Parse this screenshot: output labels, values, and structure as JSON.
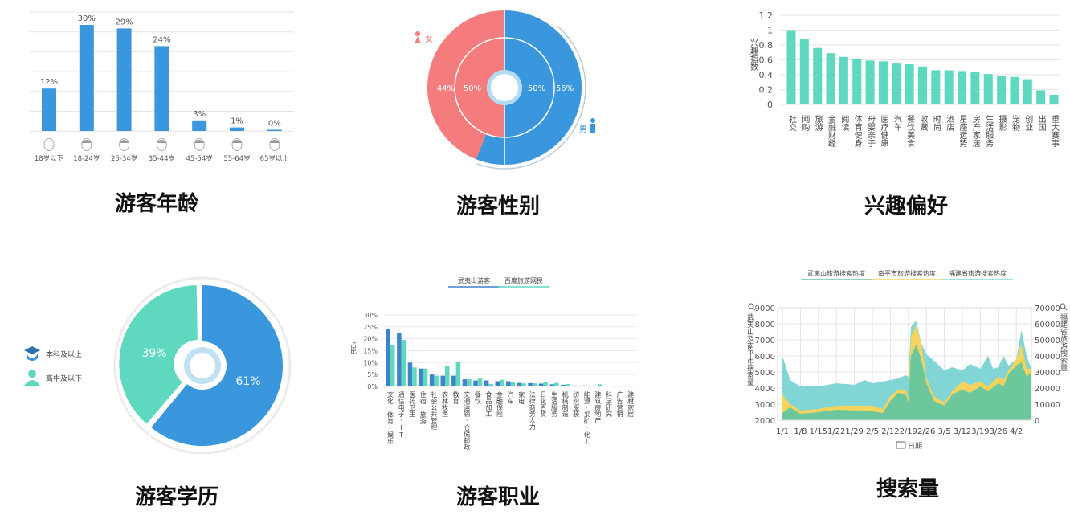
{
  "colors": {
    "age_bar": "#3a96dd",
    "female": "#f47c7c",
    "male": "#3a96dd",
    "interest_bar": "#5fd8c0",
    "edu_bachelor": "#3a96dd",
    "edu_highschool": "#5fd8c0",
    "occ_wuyi": "#3f83c8",
    "occ_baidu": "#5fd8c0",
    "search_wuyi": "#6cc89c",
    "search_nanping": "#f6d35c",
    "search_fujian": "#82d5d5"
  },
  "chart_data": [
    {
      "id": "age",
      "type": "bar",
      "title": "游客年龄",
      "categories": [
        "18岁以下",
        "18-24岁",
        "25-34岁",
        "35-44岁",
        "45-54岁",
        "55-64岁",
        "65岁以上"
      ],
      "values": [
        12,
        30,
        29,
        24,
        3,
        1,
        0
      ],
      "data_labels": [
        "12%",
        "30%",
        "29%",
        "24%",
        "3%",
        "1%",
        "0%"
      ],
      "icons": [
        "face-icon",
        "face-icon",
        "face-icon",
        "face-icon",
        "face-icon",
        "face-icon",
        "face-icon"
      ],
      "grid": true
    },
    {
      "id": "gender",
      "type": "pie",
      "title": "游客性别",
      "outer": {
        "categories": [
          "女",
          "男"
        ],
        "values": [
          44,
          56
        ],
        "labels": [
          "44%",
          "56%"
        ]
      },
      "inner": {
        "values": [
          50,
          50
        ],
        "labels": [
          "50%",
          "50%"
        ]
      },
      "legend": {
        "female": "女",
        "male": "男"
      }
    },
    {
      "id": "interest",
      "type": "bar",
      "title": "兴趣偏好",
      "ylabel": "兴趣指数",
      "ylim": [
        0,
        1.2
      ],
      "yticks": [
        "0",
        "0.2",
        "0.4",
        "0.6",
        "0.8",
        "1",
        "1.2"
      ],
      "grid": true,
      "categories": [
        "社交",
        "网购",
        "旅游",
        "金融财经",
        "阅读",
        "体育健身",
        "母婴亲子",
        "医疗健康",
        "汽车",
        "餐饮美食",
        "收藏",
        "时尚",
        "酒店",
        "星座运势",
        "房产家居",
        "生活服务",
        "摄影",
        "宠物",
        "创业",
        "出国",
        "重大赛事"
      ],
      "values": [
        1.0,
        0.88,
        0.76,
        0.69,
        0.64,
        0.61,
        0.59,
        0.58,
        0.55,
        0.54,
        0.51,
        0.46,
        0.46,
        0.45,
        0.44,
        0.41,
        0.38,
        0.37,
        0.34,
        0.19,
        0.13
      ]
    },
    {
      "id": "education",
      "type": "pie",
      "title": "游客学历",
      "categories": [
        "本科及以上",
        "高中及以下"
      ],
      "values": [
        61,
        39
      ],
      "labels": [
        "61%",
        "39%"
      ]
    },
    {
      "id": "occupation",
      "type": "bar",
      "title": "游客职业",
      "ylabel": "占比",
      "ylim": [
        0,
        30
      ],
      "yticks": [
        "0%",
        "5%",
        "10%",
        "15%",
        "20%",
        "25%",
        "30%"
      ],
      "grid": true,
      "legend_position": "top",
      "categories": [
        "文化·体育·娱乐",
        "通信电子·IT",
        "医药卫生",
        "住宿·旅游",
        "社会公共管理",
        "农林牧渔",
        "教育",
        "交通运输·仓储邮政",
        "餐饮",
        "食品加工",
        "金融保险",
        "汽车",
        "家电",
        "法律商务人力",
        "日化百货",
        "生活服务",
        "机械制造",
        "纺织服装",
        "能源·采矿·化工",
        "建筑房地产",
        "科学研究",
        "广告营销",
        "建材家居"
      ],
      "series": [
        {
          "name": "武夷山游客",
          "values": [
            24,
            22.5,
            10,
            7.5,
            5,
            4.5,
            4.5,
            3,
            2.5,
            2.5,
            2.2,
            2.2,
            1.5,
            1.4,
            1.2,
            0.9,
            0.7,
            0.4,
            0.4,
            0.4,
            0.3,
            0.2,
            0.1
          ]
        },
        {
          "name": "百度旅游网民",
          "values": [
            17.5,
            19.5,
            8,
            7.5,
            4.5,
            8.5,
            10.5,
            3,
            3.3,
            1,
            2.8,
            1.8,
            1.3,
            1.3,
            1.7,
            1.5,
            1,
            0.2,
            0.3,
            0.9,
            0.2,
            0.3,
            0
          ]
        }
      ]
    },
    {
      "id": "search",
      "type": "area",
      "title": "搜索量",
      "xlabel": "日期",
      "ylabel": "武夷山及南平市搜索量",
      "ylabel_right": "福建省旅游搜索量",
      "ylim": [
        2000,
        9000
      ],
      "ylim_right": [
        0,
        70000
      ],
      "yticks": [
        "2000",
        "3000",
        "4000",
        "5000",
        "6000",
        "7000",
        "8000",
        "9000"
      ],
      "yticks_right": [
        "0",
        "10000",
        "20000",
        "30000",
        "40000",
        "50000",
        "60000",
        "70000"
      ],
      "xticks": [
        "1/1",
        "1/8",
        "1/15",
        "1/22",
        "1/29",
        "2/5",
        "2/12",
        "2/19",
        "2/26",
        "3/5",
        "3/12",
        "3/19",
        "3/26",
        "4/2"
      ],
      "legend_position": "top",
      "grid": true,
      "series": [
        {
          "name": "福建省旅游搜索热度",
          "axis": "right",
          "x": [
            "1/1",
            "1/4",
            "1/8",
            "1/15",
            "1/22",
            "1/29",
            "2/2",
            "2/5",
            "2/9",
            "2/12",
            "2/15",
            "2/18",
            "2/19",
            "2/20",
            "2/22",
            "2/24",
            "2/26",
            "3/1",
            "3/5",
            "3/8",
            "3/12",
            "3/15",
            "3/19",
            "3/22",
            "3/24",
            "3/26",
            "3/28",
            "3/30",
            "4/2",
            "4/4",
            "4/6",
            "4/8"
          ],
          "values": [
            40000,
            25000,
            21000,
            21000,
            23000,
            22000,
            25000,
            23000,
            24000,
            25000,
            26000,
            28000,
            27000,
            58000,
            62000,
            48000,
            41000,
            37000,
            31000,
            33000,
            31000,
            35000,
            32000,
            40000,
            32000,
            33000,
            40000,
            34000,
            38000,
            56000,
            40000,
            32000
          ]
        },
        {
          "name": "南平市旅游搜索热度",
          "axis": "left",
          "x": [
            "1/1",
            "1/4",
            "1/8",
            "1/15",
            "1/22",
            "1/29",
            "2/5",
            "2/9",
            "2/12",
            "2/15",
            "2/18",
            "2/19",
            "2/20",
            "2/22",
            "2/24",
            "2/26",
            "3/1",
            "3/5",
            "3/8",
            "3/12",
            "3/15",
            "3/19",
            "3/22",
            "3/26",
            "3/28",
            "3/30",
            "4/2",
            "4/4",
            "4/6",
            "4/8"
          ],
          "values": [
            3600,
            3000,
            2600,
            2700,
            2900,
            2900,
            2900,
            2700,
            3500,
            3900,
            3900,
            3300,
            7200,
            7900,
            6800,
            4600,
            3500,
            3100,
            3800,
            4400,
            4200,
            4400,
            4100,
            4700,
            4500,
            5100,
            5800,
            6700,
            5200,
            5200
          ]
        },
        {
          "name": "武夷山旅游搜索热度",
          "axis": "left",
          "x": [
            "1/1",
            "1/4",
            "1/8",
            "1/15",
            "1/22",
            "1/29",
            "2/5",
            "2/9",
            "2/12",
            "2/15",
            "2/18",
            "2/19",
            "2/20",
            "2/22",
            "2/24",
            "2/26",
            "3/1",
            "3/5",
            "3/8",
            "3/12",
            "3/15",
            "3/19",
            "3/22",
            "3/26",
            "3/28",
            "3/30",
            "4/2",
            "4/4",
            "4/6",
            "4/8"
          ],
          "values": [
            2450,
            2800,
            2400,
            2500,
            2650,
            2600,
            2550,
            2450,
            3200,
            3700,
            3600,
            3100,
            6000,
            6700,
            5800,
            4300,
            3200,
            2900,
            3600,
            3900,
            3700,
            4100,
            3800,
            4300,
            4100,
            4900,
            5400,
            5600,
            4700,
            5000
          ]
        }
      ],
      "legend_order": [
        "武夷山旅游搜索热度",
        "南平市旅游搜索热度",
        "福建省旅游搜索热度"
      ]
    }
  ]
}
